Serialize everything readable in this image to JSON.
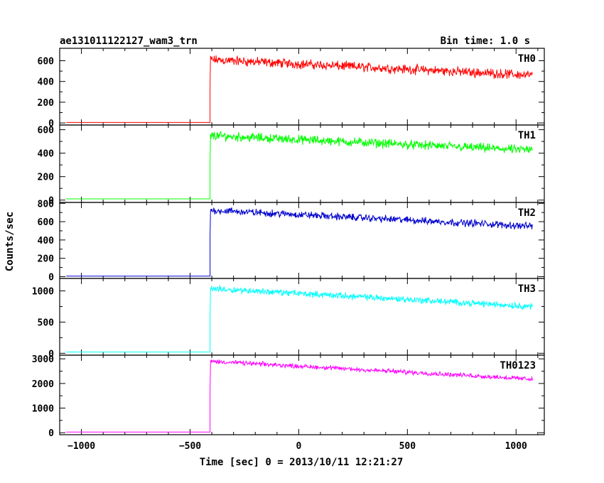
{
  "chart_data": {
    "type": "line",
    "title": "ae131011122127_wam3_trn",
    "subtitle": "Bin time: 1.0 s",
    "xlabel": "Time [sec] 0 = 2013/10/11 12:21:27",
    "ylabel": "Counts/sec",
    "xlim": [
      -1100,
      1130
    ],
    "x_ticks": [
      -1000,
      -500,
      0,
      500,
      1000
    ],
    "x_tick_labels": [
      "−1000",
      "−500",
      "0",
      "500",
      "1000"
    ],
    "grid": false,
    "panels": [
      {
        "series_name": "TH0",
        "color": "#ff0000",
        "ylim": [
          -20,
          720
        ],
        "y_ticks": [
          0,
          200,
          400,
          600
        ],
        "y_tick_labels": [
          "0",
          "200",
          "400",
          "600"
        ],
        "pre_level": 5,
        "start_time": -1070,
        "onset_time": -408,
        "end_time": 1075,
        "peak_level": 610,
        "end_level": 460,
        "noise": 35
      },
      {
        "series_name": "TH1",
        "color": "#00ff00",
        "ylim": [
          -20,
          640
        ],
        "y_ticks": [
          0,
          200,
          400,
          600
        ],
        "y_tick_labels": [
          "0",
          "200",
          "400",
          "600"
        ],
        "pre_level": 10,
        "start_time": -1070,
        "onset_time": -408,
        "end_time": 1075,
        "peak_level": 550,
        "end_level": 425,
        "noise": 30
      },
      {
        "series_name": "TH2",
        "color": "#0000cc",
        "ylim": [
          -20,
          810
        ],
        "y_ticks": [
          0,
          200,
          400,
          600,
          800
        ],
        "y_tick_labels": [
          "0",
          "200",
          "400",
          "600",
          "800"
        ],
        "pre_level": 5,
        "start_time": -1070,
        "onset_time": -408,
        "end_time": 1075,
        "peak_level": 725,
        "end_level": 550,
        "noise": 30
      },
      {
        "series_name": "TH3",
        "color": "#00ffff",
        "ylim": [
          -30,
          1200
        ],
        "y_ticks": [
          0,
          500,
          1000
        ],
        "y_tick_labels": [
          "0",
          "500",
          "1000"
        ],
        "pre_level": 20,
        "start_time": -1070,
        "onset_time": -408,
        "end_time": 1075,
        "peak_level": 1040,
        "end_level": 750,
        "noise": 40
      },
      {
        "series_name": "TH0123",
        "color": "#ff00ff",
        "ylim": [
          -80,
          3150
        ],
        "y_ticks": [
          0,
          1000,
          2000,
          3000
        ],
        "y_tick_labels": [
          "0",
          "1000",
          "2000",
          "3000"
        ],
        "pre_level": 30,
        "start_time": -1070,
        "onset_time": -408,
        "end_time": 1075,
        "peak_level": 2900,
        "end_level": 2180,
        "noise": 70
      }
    ]
  }
}
